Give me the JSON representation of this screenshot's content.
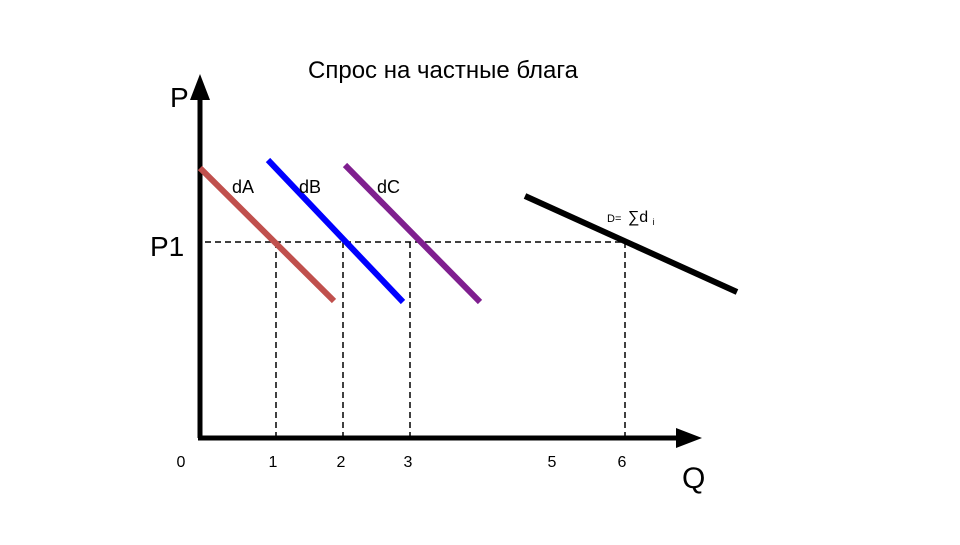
{
  "title": "Спрос на частные блага",
  "axes": {
    "y_label": "P",
    "x_label": "Q",
    "price_level": "P1"
  },
  "x_tick_labels": [
    "0",
    "1",
    "2",
    "3",
    "5",
    "6"
  ],
  "curves": [
    {
      "label": "dA"
    },
    {
      "label": "dB"
    },
    {
      "label": "dC"
    },
    {
      "label_prefix": "D=",
      "label_main": "∑d",
      "label_sub": "i"
    }
  ]
}
